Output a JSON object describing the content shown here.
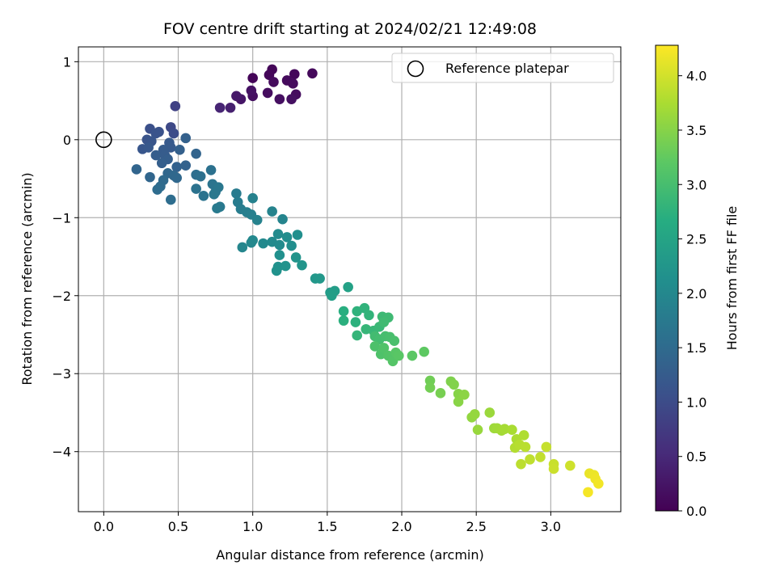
{
  "chart_data": {
    "type": "scatter",
    "title": "FOV centre drift starting at 2024/02/21 12:49:08",
    "xlabel": "Angular distance from reference (arcmin)",
    "ylabel": "Rotation from reference (arcmin)",
    "xlim": [
      -0.17,
      3.47
    ],
    "ylim": [
      -4.77,
      1.19
    ],
    "xticks": [
      0.0,
      0.5,
      1.0,
      1.5,
      2.0,
      2.5,
      3.0
    ],
    "xtick_labels": [
      "0.0",
      "0.5",
      "1.0",
      "1.5",
      "2.0",
      "2.5",
      "3.0"
    ],
    "yticks": [
      -4,
      -3,
      -2,
      -1,
      0,
      1
    ],
    "ytick_labels": [
      "−4",
      "−3",
      "−2",
      "−1",
      "0",
      "1"
    ],
    "grid": true,
    "legend": {
      "placement": "top-right",
      "entries": [
        "Reference platepar"
      ]
    },
    "reference_point": {
      "x": 0.0,
      "y": 0.0
    },
    "colorbar": {
      "label": "Hours from first FF file",
      "colormap": "viridis",
      "range": [
        0.0,
        4.28
      ],
      "ticks": [
        0.0,
        0.5,
        1.0,
        1.5,
        2.0,
        2.5,
        3.0,
        3.5,
        4.0
      ],
      "tick_labels": [
        "0.0",
        "0.5",
        "1.0",
        "1.5",
        "2.0",
        "2.5",
        "3.0",
        "3.5",
        "4.0"
      ]
    },
    "points": [
      {
        "x": 1.0,
        "y": 0.79,
        "c": 0.05
      },
      {
        "x": 1.13,
        "y": 0.9,
        "c": 0.06
      },
      {
        "x": 1.11,
        "y": 0.83,
        "c": 0.07
      },
      {
        "x": 1.28,
        "y": 0.84,
        "c": 0.08
      },
      {
        "x": 1.4,
        "y": 0.85,
        "c": 0.1
      },
      {
        "x": 1.23,
        "y": 0.76,
        "c": 0.11
      },
      {
        "x": 1.14,
        "y": 0.74,
        "c": 0.12
      },
      {
        "x": 1.27,
        "y": 0.72,
        "c": 0.13
      },
      {
        "x": 1.29,
        "y": 0.58,
        "c": 0.14
      },
      {
        "x": 1.1,
        "y": 0.6,
        "c": 0.15
      },
      {
        "x": 1.0,
        "y": 0.56,
        "c": 0.17
      },
      {
        "x": 1.18,
        "y": 0.52,
        "c": 0.18
      },
      {
        "x": 1.26,
        "y": 0.52,
        "c": 0.19
      },
      {
        "x": 0.99,
        "y": 0.63,
        "c": 0.21
      },
      {
        "x": 0.92,
        "y": 0.52,
        "c": 0.25
      },
      {
        "x": 0.89,
        "y": 0.56,
        "c": 0.3
      },
      {
        "x": 0.85,
        "y": 0.41,
        "c": 0.38
      },
      {
        "x": 0.78,
        "y": 0.41,
        "c": 0.45
      },
      {
        "x": 0.48,
        "y": 0.43,
        "c": 0.85
      },
      {
        "x": 0.45,
        "y": 0.16,
        "c": 0.95
      },
      {
        "x": 0.47,
        "y": 0.08,
        "c": 1.0
      },
      {
        "x": 0.31,
        "y": 0.14,
        "c": 1.05
      },
      {
        "x": 0.37,
        "y": 0.1,
        "c": 1.08
      },
      {
        "x": 0.35,
        "y": 0.08,
        "c": 1.1
      },
      {
        "x": 0.29,
        "y": 0.0,
        "c": 1.12
      },
      {
        "x": 0.32,
        "y": -0.02,
        "c": 1.14
      },
      {
        "x": 0.26,
        "y": -0.12,
        "c": 1.16
      },
      {
        "x": 0.3,
        "y": -0.1,
        "c": 1.18
      },
      {
        "x": 0.44,
        "y": -0.04,
        "c": 1.2
      },
      {
        "x": 0.45,
        "y": -0.1,
        "c": 1.22
      },
      {
        "x": 0.4,
        "y": -0.13,
        "c": 1.24
      },
      {
        "x": 0.41,
        "y": -0.2,
        "c": 1.26
      },
      {
        "x": 0.35,
        "y": -0.2,
        "c": 1.27
      },
      {
        "x": 0.43,
        "y": -0.25,
        "c": 1.28
      },
      {
        "x": 0.39,
        "y": -0.3,
        "c": 1.3
      },
      {
        "x": 0.51,
        "y": -0.13,
        "c": 1.32
      },
      {
        "x": 0.55,
        "y": 0.02,
        "c": 1.33
      },
      {
        "x": 0.49,
        "y": -0.35,
        "c": 1.34
      },
      {
        "x": 0.55,
        "y": -0.33,
        "c": 1.36
      },
      {
        "x": 0.62,
        "y": -0.18,
        "c": 1.38
      },
      {
        "x": 0.22,
        "y": -0.38,
        "c": 1.4
      },
      {
        "x": 0.31,
        "y": -0.48,
        "c": 1.42
      },
      {
        "x": 0.43,
        "y": -0.43,
        "c": 1.44
      },
      {
        "x": 0.47,
        "y": -0.46,
        "c": 1.45
      },
      {
        "x": 0.49,
        "y": -0.49,
        "c": 1.46
      },
      {
        "x": 0.4,
        "y": -0.52,
        "c": 1.48
      },
      {
        "x": 0.38,
        "y": -0.6,
        "c": 1.5
      },
      {
        "x": 0.36,
        "y": -0.64,
        "c": 1.52
      },
      {
        "x": 0.45,
        "y": -0.77,
        "c": 1.54
      },
      {
        "x": 0.62,
        "y": -0.45,
        "c": 1.56
      },
      {
        "x": 0.65,
        "y": -0.47,
        "c": 1.58
      },
      {
        "x": 0.72,
        "y": -0.39,
        "c": 1.6
      },
      {
        "x": 0.62,
        "y": -0.63,
        "c": 1.62
      },
      {
        "x": 0.67,
        "y": -0.72,
        "c": 1.64
      },
      {
        "x": 0.73,
        "y": -0.57,
        "c": 1.66
      },
      {
        "x": 0.75,
        "y": -0.67,
        "c": 1.68
      },
      {
        "x": 0.77,
        "y": -0.61,
        "c": 1.7
      },
      {
        "x": 0.74,
        "y": -0.7,
        "c": 1.72
      },
      {
        "x": 0.78,
        "y": -0.86,
        "c": 1.74
      },
      {
        "x": 0.76,
        "y": -0.88,
        "c": 1.76
      },
      {
        "x": 0.89,
        "y": -0.69,
        "c": 1.78
      },
      {
        "x": 0.9,
        "y": -0.8,
        "c": 1.8
      },
      {
        "x": 0.92,
        "y": -0.89,
        "c": 1.82
      },
      {
        "x": 0.96,
        "y": -0.93,
        "c": 1.84
      },
      {
        "x": 0.99,
        "y": -0.96,
        "c": 1.86
      },
      {
        "x": 1.0,
        "y": -0.75,
        "c": 1.88
      },
      {
        "x": 1.03,
        "y": -1.03,
        "c": 1.9
      },
      {
        "x": 1.13,
        "y": -0.92,
        "c": 1.92
      },
      {
        "x": 1.2,
        "y": -1.02,
        "c": 1.94
      },
      {
        "x": 0.93,
        "y": -1.38,
        "c": 1.96
      },
      {
        "x": 0.99,
        "y": -1.32,
        "c": 1.98
      },
      {
        "x": 1.0,
        "y": -1.29,
        "c": 2.0
      },
      {
        "x": 1.07,
        "y": -1.33,
        "c": 2.02
      },
      {
        "x": 1.13,
        "y": -1.31,
        "c": 2.04
      },
      {
        "x": 1.17,
        "y": -1.21,
        "c": 2.05
      },
      {
        "x": 1.18,
        "y": -1.35,
        "c": 2.06
      },
      {
        "x": 1.23,
        "y": -1.25,
        "c": 2.08
      },
      {
        "x": 1.26,
        "y": -1.36,
        "c": 2.1
      },
      {
        "x": 1.3,
        "y": -1.22,
        "c": 2.12
      },
      {
        "x": 1.18,
        "y": -1.48,
        "c": 2.14
      },
      {
        "x": 1.17,
        "y": -1.63,
        "c": 2.16
      },
      {
        "x": 1.16,
        "y": -1.68,
        "c": 2.18
      },
      {
        "x": 1.22,
        "y": -1.62,
        "c": 2.2
      },
      {
        "x": 1.29,
        "y": -1.51,
        "c": 2.22
      },
      {
        "x": 1.33,
        "y": -1.61,
        "c": 2.24
      },
      {
        "x": 1.42,
        "y": -1.78,
        "c": 2.26
      },
      {
        "x": 1.45,
        "y": -1.78,
        "c": 2.28
      },
      {
        "x": 1.52,
        "y": -1.96,
        "c": 2.34
      },
      {
        "x": 1.55,
        "y": -1.94,
        "c": 2.38
      },
      {
        "x": 1.53,
        "y": -2.0,
        "c": 2.4
      },
      {
        "x": 1.64,
        "y": -1.89,
        "c": 2.45
      },
      {
        "x": 1.61,
        "y": -2.2,
        "c": 2.7
      },
      {
        "x": 1.61,
        "y": -2.32,
        "c": 2.72
      },
      {
        "x": 1.69,
        "y": -2.34,
        "c": 2.74
      },
      {
        "x": 1.7,
        "y": -2.2,
        "c": 2.76
      },
      {
        "x": 1.75,
        "y": -2.16,
        "c": 2.78
      },
      {
        "x": 1.78,
        "y": -2.25,
        "c": 2.8
      },
      {
        "x": 1.7,
        "y": -2.51,
        "c": 2.82
      },
      {
        "x": 1.76,
        "y": -2.43,
        "c": 2.84
      },
      {
        "x": 1.81,
        "y": -2.45,
        "c": 2.86
      },
      {
        "x": 1.85,
        "y": -2.4,
        "c": 2.88
      },
      {
        "x": 1.87,
        "y": -2.27,
        "c": 2.9
      },
      {
        "x": 1.91,
        "y": -2.28,
        "c": 2.92
      },
      {
        "x": 1.88,
        "y": -2.34,
        "c": 2.94
      },
      {
        "x": 1.82,
        "y": -2.52,
        "c": 2.96
      },
      {
        "x": 1.85,
        "y": -2.56,
        "c": 2.98
      },
      {
        "x": 1.89,
        "y": -2.52,
        "c": 3.0
      },
      {
        "x": 1.92,
        "y": -2.53,
        "c": 3.02
      },
      {
        "x": 1.95,
        "y": -2.58,
        "c": 3.04
      },
      {
        "x": 1.82,
        "y": -2.65,
        "c": 3.06
      },
      {
        "x": 1.86,
        "y": -2.75,
        "c": 3.08
      },
      {
        "x": 1.88,
        "y": -2.67,
        "c": 3.1
      },
      {
        "x": 1.91,
        "y": -2.77,
        "c": 3.12
      },
      {
        "x": 1.94,
        "y": -2.84,
        "c": 3.14
      },
      {
        "x": 1.96,
        "y": -2.73,
        "c": 3.16
      },
      {
        "x": 1.98,
        "y": -2.77,
        "c": 3.18
      },
      {
        "x": 2.07,
        "y": -2.77,
        "c": 3.2
      },
      {
        "x": 2.15,
        "y": -2.72,
        "c": 3.22
      },
      {
        "x": 2.19,
        "y": -3.09,
        "c": 3.35
      },
      {
        "x": 2.19,
        "y": -3.18,
        "c": 3.37
      },
      {
        "x": 2.26,
        "y": -3.25,
        "c": 3.4
      },
      {
        "x": 2.33,
        "y": -3.1,
        "c": 3.45
      },
      {
        "x": 2.35,
        "y": -3.14,
        "c": 3.47
      },
      {
        "x": 2.38,
        "y": -3.26,
        "c": 3.5
      },
      {
        "x": 2.38,
        "y": -3.36,
        "c": 3.52
      },
      {
        "x": 2.42,
        "y": -3.27,
        "c": 3.54
      },
      {
        "x": 2.47,
        "y": -3.56,
        "c": 3.58
      },
      {
        "x": 2.49,
        "y": -3.52,
        "c": 3.6
      },
      {
        "x": 2.51,
        "y": -3.72,
        "c": 3.62
      },
      {
        "x": 2.59,
        "y": -3.5,
        "c": 3.64
      },
      {
        "x": 2.62,
        "y": -3.7,
        "c": 3.66
      },
      {
        "x": 2.64,
        "y": -3.7,
        "c": 3.68
      },
      {
        "x": 2.67,
        "y": -3.73,
        "c": 3.7
      },
      {
        "x": 2.69,
        "y": -3.71,
        "c": 3.72
      },
      {
        "x": 2.74,
        "y": -3.72,
        "c": 3.74
      },
      {
        "x": 2.77,
        "y": -3.84,
        "c": 3.76
      },
      {
        "x": 2.82,
        "y": -3.79,
        "c": 3.78
      },
      {
        "x": 2.76,
        "y": -3.95,
        "c": 3.8
      },
      {
        "x": 2.79,
        "y": -3.91,
        "c": 3.82
      },
      {
        "x": 2.83,
        "y": -3.94,
        "c": 3.84
      },
      {
        "x": 2.8,
        "y": -4.16,
        "c": 3.86
      },
      {
        "x": 2.86,
        "y": -4.1,
        "c": 3.88
      },
      {
        "x": 2.93,
        "y": -4.07,
        "c": 3.9
      },
      {
        "x": 2.97,
        "y": -3.94,
        "c": 3.92
      },
      {
        "x": 3.02,
        "y": -4.16,
        "c": 3.94
      },
      {
        "x": 3.02,
        "y": -4.22,
        "c": 3.96
      },
      {
        "x": 3.13,
        "y": -4.18,
        "c": 3.98
      },
      {
        "x": 3.26,
        "y": -4.28,
        "c": 4.15
      },
      {
        "x": 3.29,
        "y": -4.3,
        "c": 4.17
      },
      {
        "x": 3.3,
        "y": -4.35,
        "c": 4.19
      },
      {
        "x": 3.32,
        "y": -4.41,
        "c": 4.21
      },
      {
        "x": 3.25,
        "y": -4.52,
        "c": 4.23
      }
    ]
  }
}
